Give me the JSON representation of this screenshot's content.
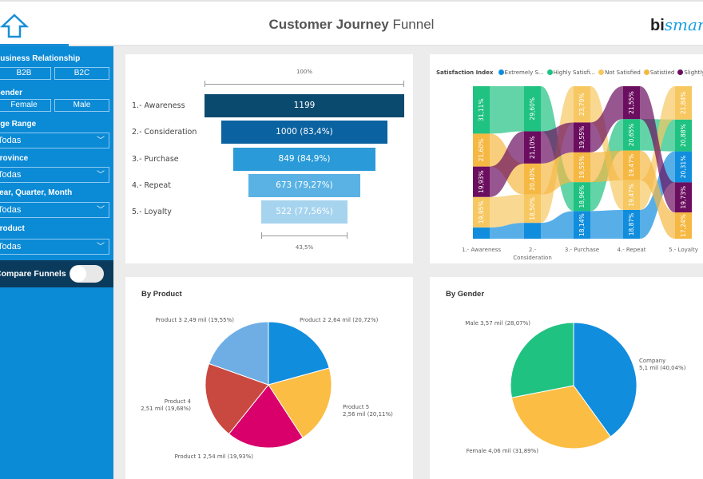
{
  "header": {
    "title_bold": "Customer Journey",
    "title_light": "Funnel",
    "logo_a": "bi",
    "logo_b": "smart",
    "home_icon": "home-arrow-icon"
  },
  "sidebar": {
    "business_relationship": {
      "label": "Business Relationship",
      "options": [
        "B2B",
        "B2C"
      ]
    },
    "gender": {
      "label": "Gender",
      "options": [
        "Female",
        "Male"
      ]
    },
    "age_range": {
      "label": "Age Range",
      "value": "Todas"
    },
    "province": {
      "label": "Province",
      "value": "Todas"
    },
    "period": {
      "label": "Year, Quarter, Month",
      "value": "Todas"
    },
    "product": {
      "label": "Product",
      "value": "Todas"
    },
    "compare": {
      "label": "Compare Funnels",
      "on": false
    }
  },
  "colors": {
    "sidebar": "#0b8ad6",
    "compare_bar": "#0b3b5c",
    "accent": "#1a8fd6"
  },
  "chart_data": [
    {
      "type": "funnel",
      "categories": [
        "1.- Awareness",
        "2.- Consideration",
        "3.- Purchase",
        "4.- Repeat",
        "5.- Loyalty"
      ],
      "values": [
        1199,
        1000,
        849,
        673,
        522
      ],
      "labels": [
        "1199",
        "1000 (83,4%)",
        "849 (84,9%)",
        "673 (79,27%)",
        "522 (77,56%)"
      ],
      "colors": [
        "#0b4a6f",
        "#0b62a0",
        "#2a9ad8",
        "#5ab2e4",
        "#a6d4ef"
      ],
      "top_measure": "100%",
      "bottom_measure": "43,5%"
    },
    {
      "type": "ribbon",
      "legend_title": "Satisfaction Index",
      "legend_placement": "top",
      "legend": [
        {
          "name": "Extremely S...",
          "color": "#118dde"
        },
        {
          "name": "Highly Satisfi...",
          "color": "#1fc281"
        },
        {
          "name": "Not Satisfied",
          "color": "#f7c862"
        },
        {
          "name": "Satistied",
          "color": "#f5b843"
        },
        {
          "name": "Slightly Diss",
          "color": "#6b0e5f"
        }
      ],
      "categories": [
        "1.- Awareness",
        "2.- Consideration",
        "3.- Purchase",
        "4.- Repeat",
        "5.- Loyalty"
      ],
      "columns": [
        [
          {
            "s": 1,
            "v": 31.11,
            "t": "31,11%"
          },
          {
            "s": 3,
            "v": 21.6,
            "t": "21,60%"
          },
          {
            "s": 4,
            "v": 19.93,
            "t": "19,93%"
          },
          {
            "s": 2,
            "v": 19.95,
            "t": "19,95%"
          },
          {
            "s": 0,
            "v": 7.41,
            "t": ""
          }
        ],
        [
          {
            "s": 1,
            "v": 29.6,
            "t": "29,60%"
          },
          {
            "s": 4,
            "v": 21.1,
            "t": "21,10%"
          },
          {
            "s": 3,
            "v": 20.4,
            "t": "20,40%"
          },
          {
            "s": 2,
            "v": 18.5,
            "t": "18,50%"
          },
          {
            "s": 0,
            "v": 10.4,
            "t": ""
          }
        ],
        [
          {
            "s": 2,
            "v": 23.79,
            "t": "23,79%"
          },
          {
            "s": 4,
            "v": 19.55,
            "t": "19,55%"
          },
          {
            "s": 3,
            "v": 19.55,
            "t": "19,55%"
          },
          {
            "s": 1,
            "v": 18.96,
            "t": "18,96%"
          },
          {
            "s": 0,
            "v": 18.14,
            "t": "18,14%"
          }
        ],
        [
          {
            "s": 4,
            "v": 21.55,
            "t": "21,55%"
          },
          {
            "s": 1,
            "v": 20.65,
            "t": "20,65%"
          },
          {
            "s": 3,
            "v": 19.47,
            "t": "19,47%"
          },
          {
            "s": 2,
            "v": 19.47,
            "t": "19,47%"
          },
          {
            "s": 0,
            "v": 18.87,
            "t": "18,87%"
          }
        ],
        [
          {
            "s": 2,
            "v": 21.84,
            "t": "21,84%"
          },
          {
            "s": 1,
            "v": 20.88,
            "t": "20,88%"
          },
          {
            "s": 0,
            "v": 20.31,
            "t": "20,31%"
          },
          {
            "s": 4,
            "v": 19.73,
            "t": "19,73%"
          },
          {
            "s": 3,
            "v": 17.24,
            "t": "17,24%"
          }
        ]
      ]
    },
    {
      "type": "pie",
      "title": "By Product",
      "slices": [
        {
          "name": "Product 2",
          "value": 2.64,
          "pct": 20.72,
          "label": "Product 2 2,64 mil (20,72%)",
          "color": "#118dde"
        },
        {
          "name": "Product 5",
          "value": 2.56,
          "pct": 20.11,
          "label": "Product 5\n2,56 mil (20,11%)",
          "color": "#fbbd44"
        },
        {
          "name": "Product 1",
          "value": 2.54,
          "pct": 19.93,
          "label": "Product 1 2,54 mil (19,93%)",
          "color": "#d9006c"
        },
        {
          "name": "Product 4",
          "value": 2.51,
          "pct": 19.68,
          "label": "Product 4\n2,51 mil (19,68%)",
          "color": "#c9483f"
        },
        {
          "name": "Product 3",
          "value": 2.49,
          "pct": 19.55,
          "label": "Product 3 2,49 mil (19,55%)",
          "color": "#6faee5"
        }
      ]
    },
    {
      "type": "pie",
      "title": "By Gender",
      "slices": [
        {
          "name": "Company",
          "value": 5.1,
          "pct": 40.04,
          "label": "Company\n5,1 mil (40,04%)",
          "color": "#118dde"
        },
        {
          "name": "Female",
          "value": 4.06,
          "pct": 31.89,
          "label": "Female 4,06 mil (31,89%)",
          "color": "#fbbd44"
        },
        {
          "name": "Male",
          "value": 3.57,
          "pct": 28.07,
          "label": "Male 3,57 mil (28,07%)",
          "color": "#1fc281"
        }
      ]
    }
  ]
}
